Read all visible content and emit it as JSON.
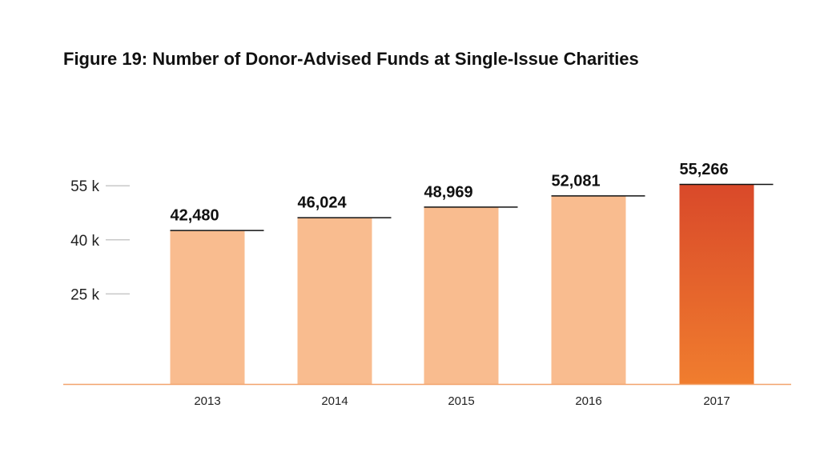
{
  "chart_data": {
    "type": "bar",
    "title": "Figure 19: Number of Donor-Advised Funds at Single-Issue Charities",
    "xlabel": "",
    "ylabel": "",
    "categories": [
      "2013",
      "2014",
      "2015",
      "2016",
      "2017"
    ],
    "values": [
      42480,
      46024,
      48969,
      52081,
      55266
    ],
    "data_labels": [
      "42,480",
      "46,024",
      "48,969",
      "52,081",
      "55,266"
    ],
    "yticks": [
      25000,
      40000,
      55000
    ],
    "ytick_labels": [
      "25 k",
      "40 k",
      "55 k"
    ],
    "ylim": [
      0,
      55266
    ],
    "grid": false,
    "legend": "none",
    "colors": {
      "bar": "#f9bc8f",
      "highlight_top": "#d9492a",
      "highlight_bottom": "#f07d2e",
      "baseline": "#f2a36c",
      "tick_mark": "#c8c8c8",
      "label_line": "#111111"
    },
    "highlight_index": 4
  }
}
